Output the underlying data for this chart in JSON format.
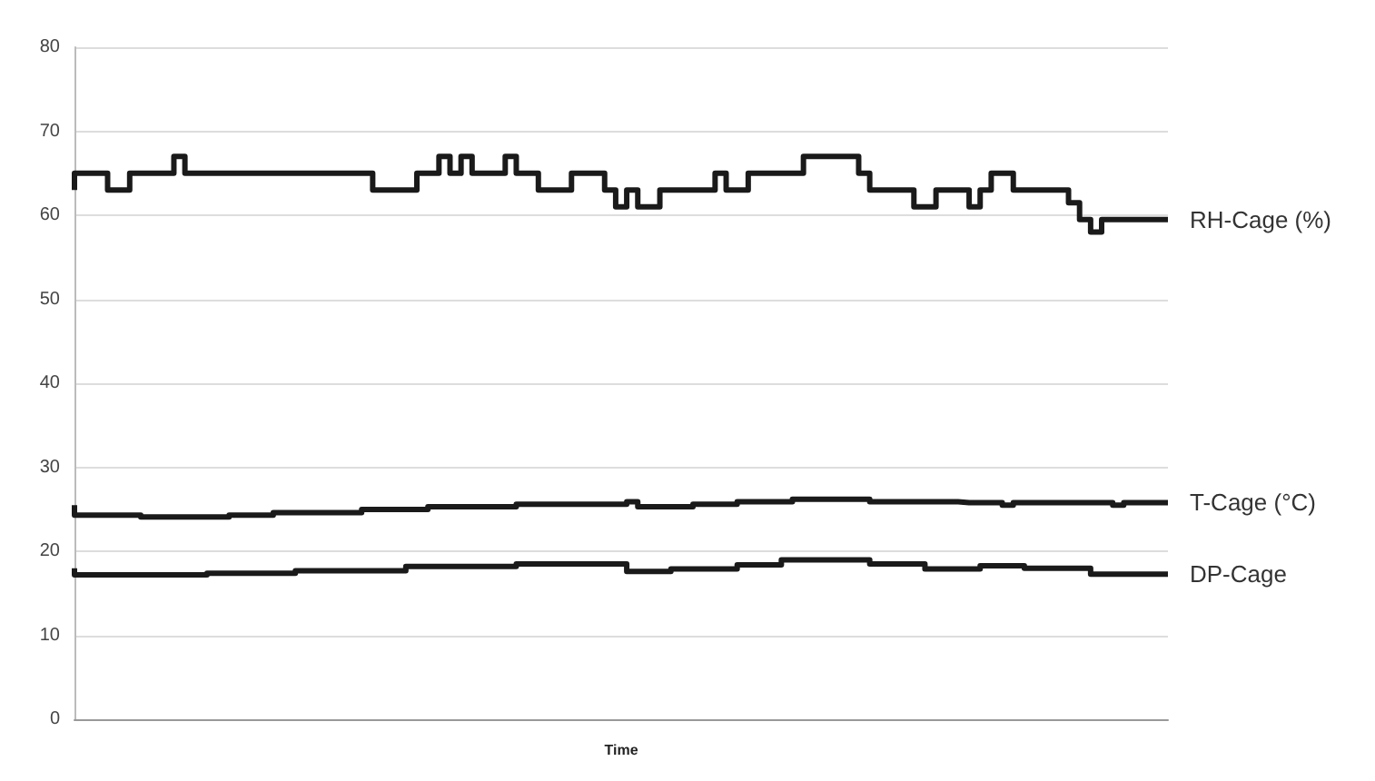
{
  "chart_data": {
    "type": "step",
    "xlabel": "Time",
    "categories": [
      null,
      null,
      null,
      null,
      null,
      null,
      null,
      null,
      null,
      null,
      null,
      null,
      null,
      null,
      null,
      null,
      null,
      null,
      null,
      null,
      null,
      null,
      null,
      null,
      null,
      null,
      null,
      null,
      null,
      null,
      null,
      null,
      null,
      null,
      null,
      null,
      null,
      null,
      null,
      null,
      null,
      null,
      null,
      null,
      null,
      null,
      null,
      null,
      null,
      null,
      null,
      null,
      null,
      null,
      null,
      null,
      null,
      null,
      null,
      null,
      null,
      null,
      null,
      null,
      null,
      null,
      null,
      null,
      null,
      null,
      null,
      null,
      null,
      null,
      null,
      null,
      null,
      null,
      null,
      null,
      null,
      null,
      null,
      null,
      null,
      null,
      null,
      null,
      null,
      null,
      null,
      null,
      null,
      null,
      null,
      null,
      null,
      null,
      null,
      null
    ],
    "series": [
      {
        "name": "RH-Cage (%)",
        "color": "#1a1a1a",
        "values": [
          63,
          65,
          65,
          65,
          63,
          63,
          65,
          65,
          65,
          65,
          67,
          65,
          65,
          65,
          65,
          65,
          65,
          65,
          65,
          65,
          65,
          65,
          65,
          65,
          65,
          65,
          65,
          65,
          63,
          63,
          63,
          63,
          65,
          65,
          67,
          65,
          67,
          65,
          65,
          65,
          67,
          65,
          65,
          63,
          63,
          63,
          65,
          65,
          65,
          63,
          61,
          63,
          61,
          61,
          63,
          63,
          63,
          63,
          63,
          65,
          63,
          63,
          65,
          65,
          65,
          65,
          65,
          67,
          67,
          67,
          67,
          67,
          65,
          63,
          63,
          63,
          63,
          61,
          61,
          63,
          63,
          63,
          61,
          63,
          65,
          65,
          63,
          63,
          63,
          63,
          63,
          61.5,
          59.5,
          58,
          59.5,
          59.5,
          59.5,
          59.5,
          59.5,
          59.5
        ]
      },
      {
        "name": "T-Cage (°C)",
        "color": "#1a1a1a",
        "values": [
          25.5,
          24.3,
          24.3,
          24.3,
          24.3,
          24.3,
          24.3,
          24.1,
          24.1,
          24.1,
          24.1,
          24.1,
          24.1,
          24.1,
          24.1,
          24.3,
          24.3,
          24.3,
          24.3,
          24.6,
          24.6,
          24.6,
          24.6,
          24.6,
          24.6,
          24.6,
          24.6,
          25,
          25,
          25,
          25,
          25,
          25,
          25.3,
          25.3,
          25.3,
          25.3,
          25.3,
          25.3,
          25.3,
          25.3,
          25.6,
          25.6,
          25.6,
          25.6,
          25.6,
          25.6,
          25.6,
          25.6,
          25.6,
          25.6,
          25.9,
          25.3,
          25.3,
          25.3,
          25.3,
          25.3,
          25.6,
          25.6,
          25.6,
          25.6,
          25.9,
          25.9,
          25.9,
          25.9,
          25.9,
          26.2,
          26.2,
          26.2,
          26.2,
          26.2,
          26.2,
          26.2,
          25.9,
          25.9,
          25.9,
          25.9,
          25.9,
          25.9,
          25.9,
          25.9,
          25.8,
          25.8,
          25.8,
          25.8,
          25.5,
          25.8,
          25.8,
          25.8,
          25.8,
          25.8,
          25.8,
          25.8,
          25.8,
          25.8,
          25.5,
          25.8,
          25.8,
          25.8,
          25.8
        ]
      },
      {
        "name": "DP-Cage",
        "color": "#1a1a1a",
        "values": [
          18,
          17.2,
          17.2,
          17.2,
          17.2,
          17.2,
          17.2,
          17.2,
          17.2,
          17.2,
          17.2,
          17.2,
          17.2,
          17.4,
          17.4,
          17.4,
          17.4,
          17.4,
          17.4,
          17.4,
          17.4,
          17.7,
          17.7,
          17.7,
          17.7,
          17.7,
          17.7,
          17.7,
          17.7,
          17.7,
          17.7,
          18.2,
          18.2,
          18.2,
          18.2,
          18.2,
          18.2,
          18.2,
          18.2,
          18.2,
          18.2,
          18.5,
          18.5,
          18.5,
          18.5,
          18.5,
          18.5,
          18.5,
          18.5,
          18.5,
          18.5,
          17.6,
          17.6,
          17.6,
          17.6,
          17.9,
          17.9,
          17.9,
          17.9,
          17.9,
          17.9,
          18.4,
          18.4,
          18.4,
          18.4,
          19,
          19,
          19,
          19,
          19,
          19,
          19,
          19,
          18.5,
          18.5,
          18.5,
          18.5,
          18.5,
          17.9,
          17.9,
          17.9,
          17.9,
          17.9,
          18.3,
          18.3,
          18.3,
          18.3,
          18,
          18,
          18,
          18,
          18,
          18,
          17.3,
          17.3,
          17.3,
          17.3,
          17.3,
          17.3,
          17.3
        ]
      }
    ],
    "ylim": [
      0,
      80
    ],
    "yticks": [
      0,
      10,
      20,
      30,
      40,
      50,
      60,
      70,
      80
    ],
    "grid": "y",
    "legend": false,
    "marker": "none",
    "line_style": "solid"
  }
}
